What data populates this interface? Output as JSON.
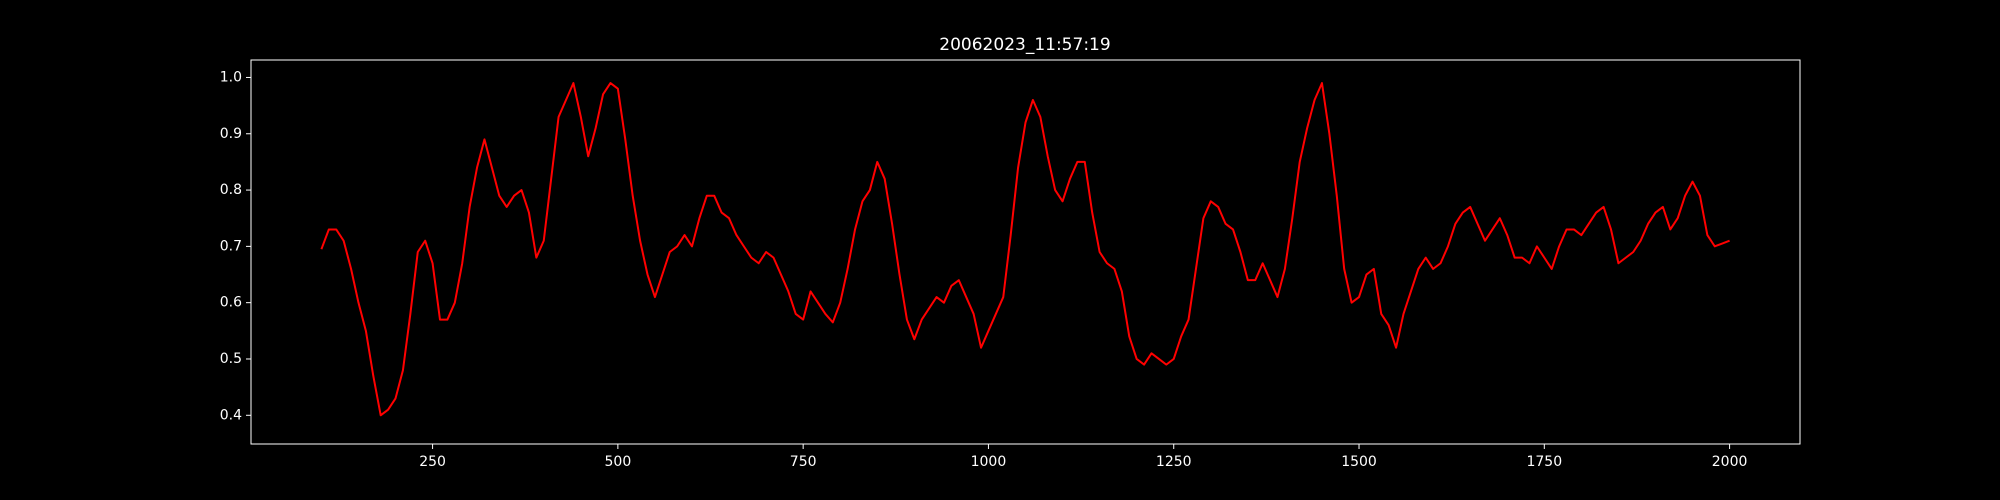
{
  "chart_data": {
    "type": "line",
    "title": "20062023_11:57:19",
    "x": [
      100,
      110,
      120,
      130,
      140,
      150,
      160,
      170,
      180,
      190,
      200,
      210,
      220,
      230,
      240,
      250,
      260,
      270,
      280,
      290,
      300,
      310,
      320,
      330,
      340,
      350,
      360,
      370,
      380,
      390,
      400,
      410,
      420,
      430,
      440,
      450,
      460,
      470,
      480,
      490,
      500,
      510,
      520,
      530,
      540,
      550,
      560,
      570,
      580,
      590,
      600,
      610,
      620,
      630,
      640,
      650,
      660,
      670,
      680,
      690,
      700,
      710,
      720,
      730,
      740,
      750,
      760,
      770,
      780,
      790,
      800,
      810,
      820,
      830,
      840,
      850,
      860,
      870,
      880,
      890,
      900,
      910,
      920,
      930,
      940,
      950,
      960,
      970,
      980,
      990,
      1000,
      1010,
      1020,
      1030,
      1040,
      1050,
      1060,
      1070,
      1080,
      1090,
      1100,
      1110,
      1120,
      1130,
      1140,
      1150,
      1160,
      1170,
      1180,
      1190,
      1200,
      1210,
      1220,
      1230,
      1240,
      1250,
      1260,
      1270,
      1280,
      1290,
      1300,
      1310,
      1320,
      1330,
      1340,
      1350,
      1360,
      1370,
      1380,
      1390,
      1400,
      1410,
      1420,
      1430,
      1440,
      1450,
      1460,
      1470,
      1480,
      1490,
      1500,
      1510,
      1520,
      1530,
      1540,
      1550,
      1560,
      1570,
      1580,
      1590,
      1600,
      1610,
      1620,
      1630,
      1640,
      1650,
      1660,
      1670,
      1680,
      1690,
      1700,
      1710,
      1720,
      1730,
      1740,
      1750,
      1760,
      1770,
      1780,
      1790,
      1800,
      1810,
      1820,
      1830,
      1840,
      1850,
      1860,
      1870,
      1880,
      1890,
      1900,
      1910,
      1920,
      1930,
      1940,
      1950,
      1960,
      1970,
      1980,
      1990,
      2000
    ],
    "series": [
      {
        "color": "#ff0000",
        "values": [
          0.695,
          0.73,
          0.73,
          0.71,
          0.66,
          0.6,
          0.55,
          0.47,
          0.4,
          0.41,
          0.43,
          0.48,
          0.58,
          0.69,
          0.71,
          0.67,
          0.57,
          0.57,
          0.6,
          0.67,
          0.77,
          0.84,
          0.89,
          0.84,
          0.79,
          0.77,
          0.79,
          0.8,
          0.76,
          0.68,
          0.71,
          0.82,
          0.93,
          0.96,
          0.99,
          0.93,
          0.86,
          0.91,
          0.97,
          0.99,
          0.98,
          0.89,
          0.79,
          0.71,
          0.65,
          0.61,
          0.65,
          0.69,
          0.7,
          0.72,
          0.7,
          0.75,
          0.79,
          0.79,
          0.76,
          0.75,
          0.72,
          0.7,
          0.68,
          0.67,
          0.69,
          0.68,
          0.65,
          0.62,
          0.58,
          0.57,
          0.62,
          0.6,
          0.58,
          0.565,
          0.6,
          0.66,
          0.73,
          0.78,
          0.8,
          0.85,
          0.82,
          0.74,
          0.65,
          0.57,
          0.535,
          0.57,
          0.59,
          0.61,
          0.6,
          0.63,
          0.64,
          0.61,
          0.58,
          0.52,
          0.55,
          0.58,
          0.61,
          0.72,
          0.84,
          0.92,
          0.96,
          0.93,
          0.86,
          0.8,
          0.78,
          0.82,
          0.85,
          0.85,
          0.76,
          0.69,
          0.67,
          0.66,
          0.62,
          0.54,
          0.5,
          0.49,
          0.51,
          0.5,
          0.49,
          0.5,
          0.54,
          0.57,
          0.66,
          0.75,
          0.78,
          0.77,
          0.74,
          0.73,
          0.69,
          0.64,
          0.64,
          0.67,
          0.64,
          0.61,
          0.66,
          0.75,
          0.85,
          0.91,
          0.96,
          0.99,
          0.9,
          0.79,
          0.66,
          0.6,
          0.61,
          0.65,
          0.66,
          0.58,
          0.56,
          0.52,
          0.58,
          0.62,
          0.66,
          0.68,
          0.66,
          0.67,
          0.7,
          0.74,
          0.76,
          0.77,
          0.74,
          0.71,
          0.73,
          0.75,
          0.72,
          0.68,
          0.68,
          0.67,
          0.7,
          0.68,
          0.66,
          0.7,
          0.73,
          0.73,
          0.72,
          0.74,
          0.76,
          0.77,
          0.73,
          0.67,
          0.68,
          0.69,
          0.71,
          0.74,
          0.76,
          0.77,
          0.73,
          0.75,
          0.79,
          0.815,
          0.79,
          0.72,
          0.7,
          0.705,
          0.71
        ]
      }
    ],
    "xlim": [
      5,
      2095
    ],
    "ylim": [
      0.349,
      1.031
    ],
    "xticks": [
      250,
      500,
      750,
      1000,
      1250,
      1500,
      1750,
      2000
    ],
    "yticks": [
      0.4,
      0.5,
      0.6,
      0.7,
      0.8,
      0.9,
      {
        "value": 1,
        "label": "1.0"
      }
    ],
    "grid": false
  }
}
